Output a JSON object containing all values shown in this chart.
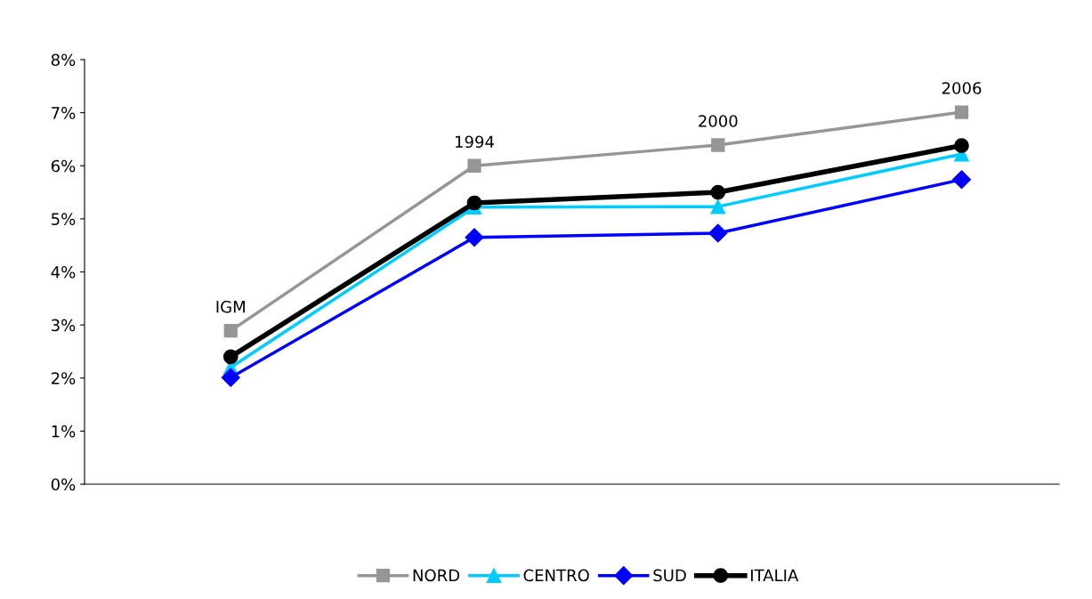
{
  "chart_data": {
    "type": "line",
    "categories": [
      null,
      null,
      null,
      null
    ],
    "tick_labels": "y",
    "ylim": [
      0,
      8
    ],
    "yticks": [
      {
        "value": 0,
        "label": "0%"
      },
      {
        "value": 1,
        "label": "1%"
      },
      {
        "value": 2,
        "label": "2%"
      },
      {
        "value": 3,
        "label": "3%"
      },
      {
        "value": 4,
        "label": "4%"
      },
      {
        "value": 5,
        "label": "5%"
      },
      {
        "value": 6,
        "label": "6%"
      },
      {
        "value": 7,
        "label": "7%"
      },
      {
        "value": 8,
        "label": "8%"
      }
    ],
    "legend": "bottom",
    "series": [
      {
        "name": "NORD",
        "color": "#969696",
        "marker": "square",
        "values": [
          2.89,
          6.0,
          6.39,
          7.01
        ]
      },
      {
        "name": "CENTRO",
        "color": "#00ccff",
        "marker": "triangle",
        "values": [
          2.2,
          5.22,
          5.23,
          6.22
        ]
      },
      {
        "name": "SUD",
        "color": "#0000ff",
        "marker": "diamond",
        "values": [
          2.01,
          4.65,
          4.73,
          5.74
        ]
      },
      {
        "name": "ITALIA",
        "color": "#000000",
        "marker": "circle",
        "values": [
          2.4,
          5.3,
          5.5,
          6.38
        ]
      }
    ],
    "annotations": [
      {
        "text": "IGM",
        "y": 2.89
      },
      {
        "text": "1994",
        "y": 6.0
      },
      {
        "text": "2000",
        "y": 6.39
      },
      {
        "text": "2006",
        "y": 7.01
      }
    ]
  }
}
